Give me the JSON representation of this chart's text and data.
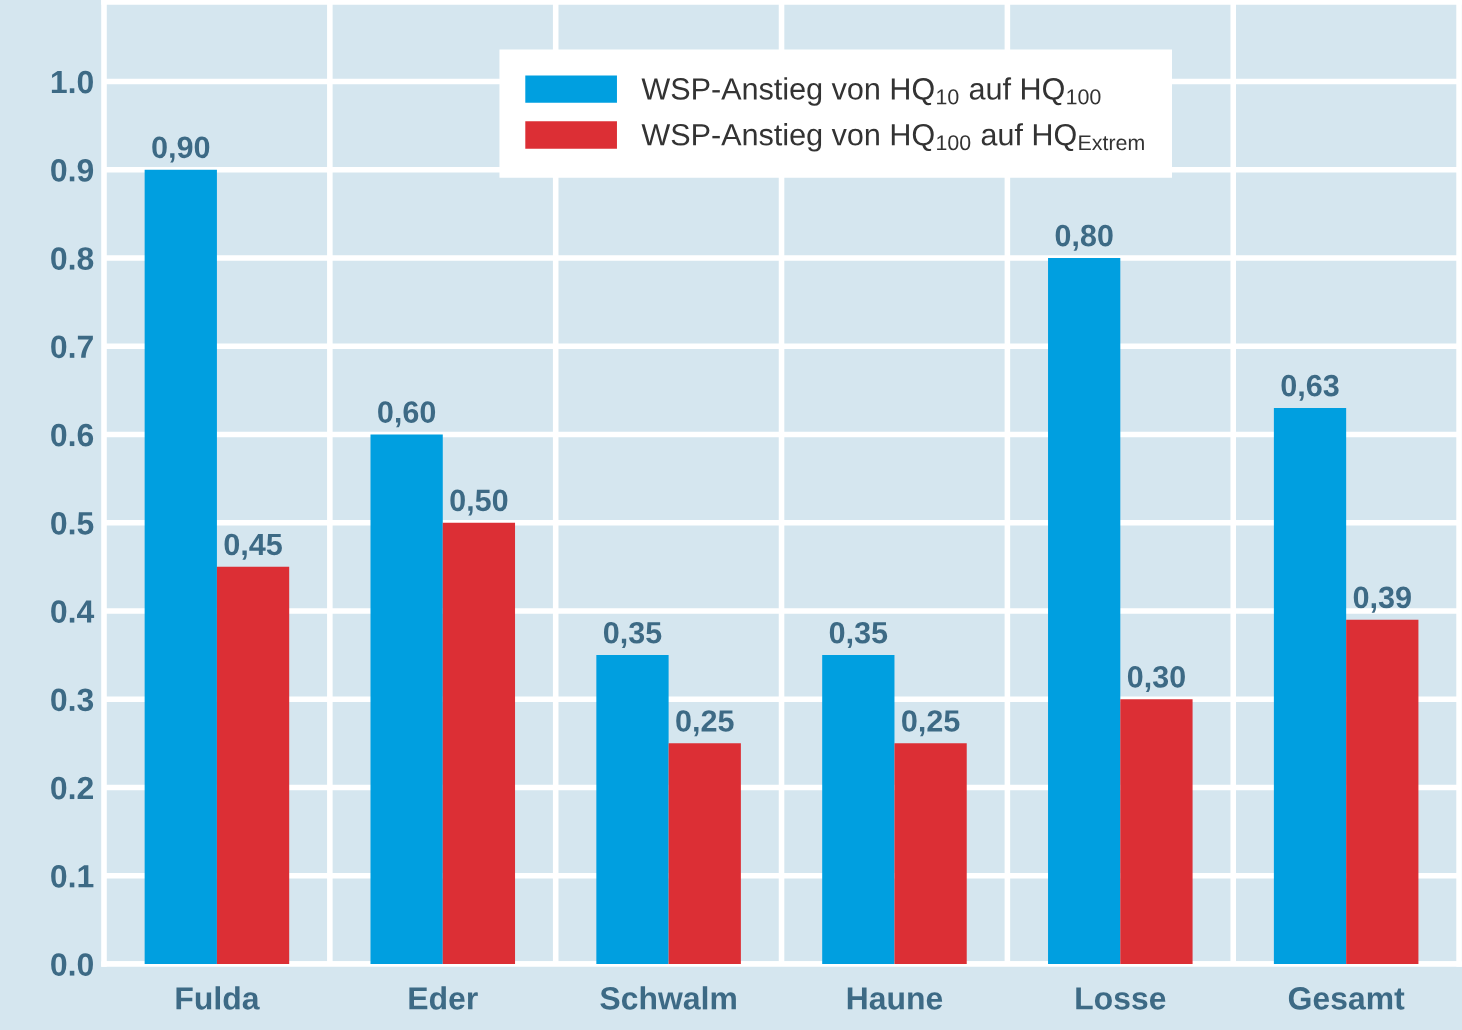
{
  "chart_data": {
    "type": "bar",
    "categories": [
      "Fulda",
      "Eder",
      "Schwalm",
      "Haune",
      "Losse",
      "Gesamt"
    ],
    "series": [
      {
        "name": "WSP-Anstieg von HQ$_{10}$ auf HQ$_{100}$",
        "color": "#009fe0",
        "values": [
          0.9,
          0.6,
          0.35,
          0.35,
          0.8,
          0.63
        ],
        "value_labels": [
          "0,90",
          "0,60",
          "0,35",
          "0,35",
          "0,80",
          "0,63"
        ]
      },
      {
        "name": "WSP-Anstieg von HQ$_{100}$ auf HQ$_{Extrem}$",
        "color": "#dc2f35",
        "values": [
          0.45,
          0.5,
          0.25,
          0.25,
          0.3,
          0.39
        ],
        "value_labels": [
          "0,45",
          "0,50",
          "0,25",
          "0,25",
          "0,30",
          "0,39"
        ]
      }
    ],
    "ylim": [
      0,
      1.09
    ],
    "yticks": [
      {
        "value": 0,
        "label": "0.0"
      },
      {
        "value": 0.1,
        "label": "0.1"
      },
      {
        "value": 0.2,
        "label": "0.2"
      },
      {
        "value": 0.3,
        "label": "0.3"
      },
      {
        "value": 0.4,
        "label": "0.4"
      },
      {
        "value": 0.5,
        "label": "0.5"
      },
      {
        "value": 0.6,
        "label": "0.6"
      },
      {
        "value": 0.7,
        "label": "0.7"
      },
      {
        "value": 0.8,
        "label": "0.8"
      },
      {
        "value": 0.9,
        "label": "0.9"
      },
      {
        "value": 1.0,
        "label": "1.0"
      }
    ],
    "grid": true,
    "legend": "top"
  }
}
